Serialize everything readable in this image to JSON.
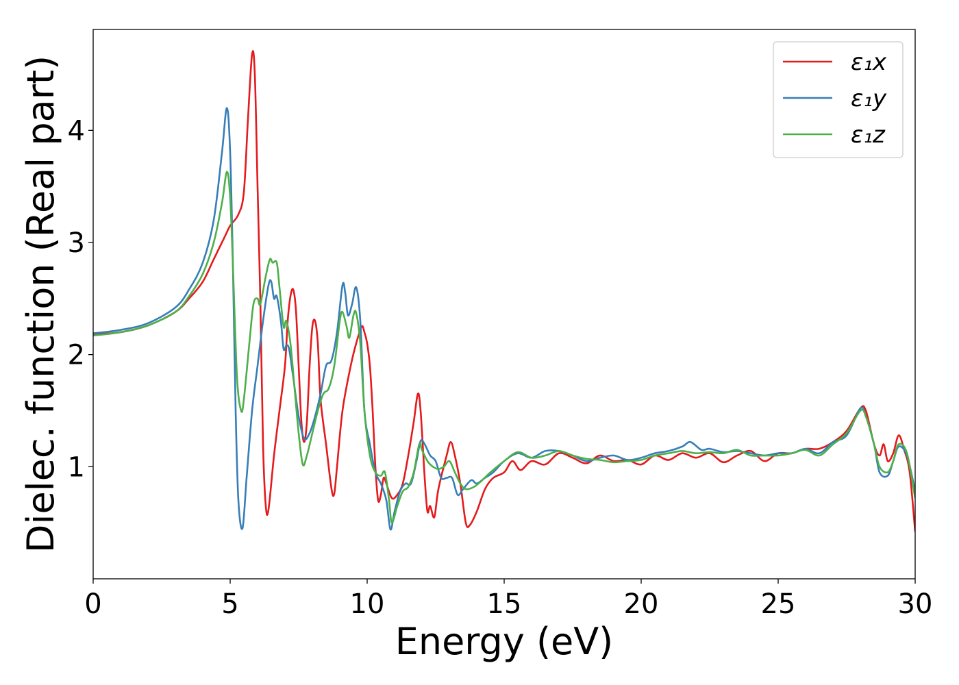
{
  "chart_data": {
    "type": "line",
    "xlabel": "Energy (eV)",
    "ylabel": "Dielec. function (Real part)",
    "xlim": [
      0,
      30
    ],
    "ylim": [
      0.0,
      4.9
    ],
    "xticks": [
      0,
      5,
      10,
      15,
      20,
      25,
      30
    ],
    "yticks": [
      1,
      2,
      3,
      4
    ],
    "grid": false,
    "legend_position": "top-right",
    "series": [
      {
        "name": "ε₁x",
        "color": "#e41a1c",
        "points": [
          [
            0,
            2.18
          ],
          [
            1,
            2.2
          ],
          [
            2,
            2.26
          ],
          [
            3,
            2.38
          ],
          [
            3.5,
            2.5
          ],
          [
            4,
            2.65
          ],
          [
            4.4,
            2.85
          ],
          [
            4.8,
            3.05
          ],
          [
            5,
            3.15
          ],
          [
            5.3,
            3.25
          ],
          [
            5.5,
            3.45
          ],
          [
            5.65,
            4.1
          ],
          [
            5.8,
            4.68
          ],
          [
            5.9,
            4.5
          ],
          [
            6.0,
            3.5
          ],
          [
            6.1,
            2.5
          ],
          [
            6.2,
            1.2
          ],
          [
            6.3,
            0.65
          ],
          [
            6.4,
            0.62
          ],
          [
            6.6,
            1.1
          ],
          [
            6.8,
            1.5
          ],
          [
            7.0,
            1.9
          ],
          [
            7.1,
            2.3
          ],
          [
            7.2,
            2.52
          ],
          [
            7.3,
            2.58
          ],
          [
            7.4,
            2.4
          ],
          [
            7.5,
            1.9
          ],
          [
            7.6,
            1.4
          ],
          [
            7.7,
            1.22
          ],
          [
            7.8,
            1.4
          ],
          [
            7.9,
            1.9
          ],
          [
            8.0,
            2.25
          ],
          [
            8.1,
            2.3
          ],
          [
            8.2,
            2.1
          ],
          [
            8.3,
            1.6
          ],
          [
            8.5,
            1.2
          ],
          [
            8.7,
            0.8
          ],
          [
            8.8,
            0.76
          ],
          [
            8.9,
            1.0
          ],
          [
            9.1,
            1.5
          ],
          [
            9.4,
            1.9
          ],
          [
            9.6,
            2.1
          ],
          [
            9.8,
            2.25
          ],
          [
            9.9,
            2.2
          ],
          [
            10.0,
            2.1
          ],
          [
            10.1,
            1.9
          ],
          [
            10.2,
            1.5
          ],
          [
            10.3,
            1.0
          ],
          [
            10.4,
            0.7
          ],
          [
            10.5,
            0.75
          ],
          [
            10.6,
            0.9
          ],
          [
            10.7,
            0.85
          ],
          [
            10.9,
            0.72
          ],
          [
            11.1,
            0.75
          ],
          [
            11.3,
            0.85
          ],
          [
            11.5,
            1.1
          ],
          [
            11.7,
            1.4
          ],
          [
            11.85,
            1.65
          ],
          [
            11.95,
            1.5
          ],
          [
            12.1,
            0.9
          ],
          [
            12.2,
            0.6
          ],
          [
            12.3,
            0.65
          ],
          [
            12.45,
            0.55
          ],
          [
            12.6,
            0.8
          ],
          [
            12.9,
            1.1
          ],
          [
            13.05,
            1.22
          ],
          [
            13.2,
            1.1
          ],
          [
            13.4,
            0.85
          ],
          [
            13.6,
            0.5
          ],
          [
            13.75,
            0.48
          ],
          [
            14.0,
            0.6
          ],
          [
            14.3,
            0.8
          ],
          [
            14.6,
            0.9
          ],
          [
            15,
            0.95
          ],
          [
            15.3,
            1.05
          ],
          [
            15.6,
            0.97
          ],
          [
            16,
            1.05
          ],
          [
            16.5,
            1.02
          ],
          [
            17,
            1.12
          ],
          [
            17.5,
            1.08
          ],
          [
            18,
            1.03
          ],
          [
            18.5,
            1.1
          ],
          [
            19,
            1.05
          ],
          [
            19.5,
            1.06
          ],
          [
            20,
            1.02
          ],
          [
            20.5,
            1.1
          ],
          [
            21,
            1.06
          ],
          [
            21.5,
            1.12
          ],
          [
            22,
            1.08
          ],
          [
            22.5,
            1.12
          ],
          [
            23,
            1.04
          ],
          [
            23.5,
            1.1
          ],
          [
            24,
            1.14
          ],
          [
            24.5,
            1.05
          ],
          [
            25,
            1.12
          ],
          [
            25.5,
            1.12
          ],
          [
            26,
            1.16
          ],
          [
            26.5,
            1.16
          ],
          [
            27,
            1.22
          ],
          [
            27.5,
            1.32
          ],
          [
            28.0,
            1.52
          ],
          [
            28.2,
            1.5
          ],
          [
            28.5,
            1.2
          ],
          [
            28.7,
            1.1
          ],
          [
            28.85,
            1.2
          ],
          [
            29.0,
            1.05
          ],
          [
            29.2,
            1.12
          ],
          [
            29.4,
            1.28
          ],
          [
            29.6,
            1.15
          ],
          [
            29.8,
            0.95
          ],
          [
            30,
            0.42
          ]
        ]
      },
      {
        "name": "ε₁y",
        "color": "#377eb8",
        "points": [
          [
            0,
            2.19
          ],
          [
            1,
            2.22
          ],
          [
            2,
            2.28
          ],
          [
            3,
            2.42
          ],
          [
            3.5,
            2.58
          ],
          [
            4,
            2.82
          ],
          [
            4.4,
            3.2
          ],
          [
            4.7,
            3.8
          ],
          [
            4.88,
            4.2
          ],
          [
            5.0,
            3.8
          ],
          [
            5.1,
            2.8
          ],
          [
            5.2,
            1.5
          ],
          [
            5.3,
            0.7
          ],
          [
            5.45,
            0.45
          ],
          [
            5.6,
            0.9
          ],
          [
            5.8,
            1.5
          ],
          [
            6.0,
            1.9
          ],
          [
            6.2,
            2.3
          ],
          [
            6.4,
            2.62
          ],
          [
            6.5,
            2.65
          ],
          [
            6.6,
            2.5
          ],
          [
            6.7,
            2.52
          ],
          [
            6.85,
            2.3
          ],
          [
            6.95,
            2.05
          ],
          [
            7.05,
            2.08
          ],
          [
            7.15,
            2.05
          ],
          [
            7.3,
            1.8
          ],
          [
            7.5,
            1.45
          ],
          [
            7.7,
            1.25
          ],
          [
            7.9,
            1.3
          ],
          [
            8.1,
            1.45
          ],
          [
            8.3,
            1.65
          ],
          [
            8.5,
            1.9
          ],
          [
            8.7,
            1.95
          ],
          [
            8.9,
            2.2
          ],
          [
            9.1,
            2.62
          ],
          [
            9.2,
            2.55
          ],
          [
            9.3,
            2.35
          ],
          [
            9.45,
            2.45
          ],
          [
            9.6,
            2.6
          ],
          [
            9.75,
            2.3
          ],
          [
            9.9,
            1.5
          ],
          [
            10.1,
            1.2
          ],
          [
            10.3,
            0.95
          ],
          [
            10.5,
            0.85
          ],
          [
            10.7,
            0.7
          ],
          [
            10.85,
            0.44
          ],
          [
            11.0,
            0.6
          ],
          [
            11.2,
            0.78
          ],
          [
            11.4,
            0.85
          ],
          [
            11.6,
            0.85
          ],
          [
            11.8,
            1.05
          ],
          [
            11.95,
            1.23
          ],
          [
            12.1,
            1.2
          ],
          [
            12.3,
            1.1
          ],
          [
            12.5,
            1.05
          ],
          [
            12.7,
            0.9
          ],
          [
            12.9,
            0.9
          ],
          [
            13.1,
            0.9
          ],
          [
            13.3,
            0.75
          ],
          [
            13.5,
            0.8
          ],
          [
            13.8,
            0.88
          ],
          [
            14.0,
            0.85
          ],
          [
            14.3,
            0.9
          ],
          [
            14.6,
            0.95
          ],
          [
            15,
            1.05
          ],
          [
            15.5,
            1.12
          ],
          [
            16,
            1.08
          ],
          [
            16.5,
            1.14
          ],
          [
            17,
            1.14
          ],
          [
            17.5,
            1.1
          ],
          [
            18,
            1.05
          ],
          [
            18.5,
            1.08
          ],
          [
            19,
            1.1
          ],
          [
            19.5,
            1.06
          ],
          [
            20,
            1.08
          ],
          [
            20.5,
            1.12
          ],
          [
            21,
            1.14
          ],
          [
            21.5,
            1.18
          ],
          [
            21.8,
            1.22
          ],
          [
            22.2,
            1.15
          ],
          [
            22.5,
            1.16
          ],
          [
            23,
            1.13
          ],
          [
            23.5,
            1.14
          ],
          [
            24,
            1.12
          ],
          [
            24.5,
            1.1
          ],
          [
            25,
            1.12
          ],
          [
            25.5,
            1.12
          ],
          [
            26,
            1.16
          ],
          [
            26.5,
            1.12
          ],
          [
            27,
            1.22
          ],
          [
            27.5,
            1.28
          ],
          [
            28.0,
            1.52
          ],
          [
            28.2,
            1.45
          ],
          [
            28.5,
            1.2
          ],
          [
            28.7,
            0.95
          ],
          [
            29.0,
            0.92
          ],
          [
            29.2,
            1.05
          ],
          [
            29.4,
            1.18
          ],
          [
            29.7,
            1.1
          ],
          [
            30,
            0.78
          ]
        ]
      },
      {
        "name": "ε₁z",
        "color": "#4daf4a",
        "points": [
          [
            0,
            2.17
          ],
          [
            1,
            2.2
          ],
          [
            2,
            2.26
          ],
          [
            3,
            2.38
          ],
          [
            3.5,
            2.52
          ],
          [
            4,
            2.72
          ],
          [
            4.4,
            3.0
          ],
          [
            4.7,
            3.35
          ],
          [
            4.88,
            3.63
          ],
          [
            5.0,
            3.4
          ],
          [
            5.1,
            2.8
          ],
          [
            5.25,
            1.8
          ],
          [
            5.4,
            1.5
          ],
          [
            5.5,
            1.6
          ],
          [
            5.7,
            2.1
          ],
          [
            5.85,
            2.45
          ],
          [
            6.0,
            2.5
          ],
          [
            6.1,
            2.45
          ],
          [
            6.3,
            2.7
          ],
          [
            6.45,
            2.85
          ],
          [
            6.55,
            2.82
          ],
          [
            6.7,
            2.82
          ],
          [
            6.8,
            2.6
          ],
          [
            6.95,
            2.25
          ],
          [
            7.05,
            2.3
          ],
          [
            7.2,
            2.1
          ],
          [
            7.35,
            1.7
          ],
          [
            7.5,
            1.3
          ],
          [
            7.65,
            1.02
          ],
          [
            7.8,
            1.1
          ],
          [
            8.0,
            1.3
          ],
          [
            8.2,
            1.5
          ],
          [
            8.4,
            1.65
          ],
          [
            8.6,
            1.7
          ],
          [
            8.8,
            1.9
          ],
          [
            9.0,
            2.3
          ],
          [
            9.1,
            2.38
          ],
          [
            9.25,
            2.25
          ],
          [
            9.35,
            2.15
          ],
          [
            9.5,
            2.35
          ],
          [
            9.6,
            2.37
          ],
          [
            9.75,
            2.1
          ],
          [
            9.9,
            1.5
          ],
          [
            10.1,
            1.1
          ],
          [
            10.3,
            0.95
          ],
          [
            10.5,
            0.92
          ],
          [
            10.65,
            0.95
          ],
          [
            10.8,
            0.7
          ],
          [
            10.9,
            0.5
          ],
          [
            11.1,
            0.65
          ],
          [
            11.3,
            0.78
          ],
          [
            11.5,
            0.82
          ],
          [
            11.7,
            0.95
          ],
          [
            11.9,
            1.2
          ],
          [
            12.0,
            1.15
          ],
          [
            12.2,
            1.05
          ],
          [
            12.4,
            1.0
          ],
          [
            12.6,
            0.98
          ],
          [
            12.8,
            1.0
          ],
          [
            13.0,
            1.05
          ],
          [
            13.2,
            0.95
          ],
          [
            13.4,
            0.85
          ],
          [
            13.6,
            0.8
          ],
          [
            13.9,
            0.82
          ],
          [
            14.2,
            0.88
          ],
          [
            14.5,
            0.95
          ],
          [
            15,
            1.05
          ],
          [
            15.5,
            1.13
          ],
          [
            16,
            1.08
          ],
          [
            16.5,
            1.1
          ],
          [
            17,
            1.14
          ],
          [
            17.5,
            1.1
          ],
          [
            18,
            1.07
          ],
          [
            18.5,
            1.06
          ],
          [
            19,
            1.04
          ],
          [
            19.5,
            1.05
          ],
          [
            20,
            1.06
          ],
          [
            20.5,
            1.1
          ],
          [
            21,
            1.12
          ],
          [
            21.5,
            1.14
          ],
          [
            22,
            1.12
          ],
          [
            22.5,
            1.13
          ],
          [
            23,
            1.12
          ],
          [
            23.5,
            1.15
          ],
          [
            24,
            1.1
          ],
          [
            24.5,
            1.1
          ],
          [
            25,
            1.1
          ],
          [
            25.5,
            1.12
          ],
          [
            26,
            1.15
          ],
          [
            26.5,
            1.1
          ],
          [
            27,
            1.2
          ],
          [
            27.5,
            1.3
          ],
          [
            28.0,
            1.5
          ],
          [
            28.2,
            1.45
          ],
          [
            28.5,
            1.2
          ],
          [
            28.7,
            1.0
          ],
          [
            29.0,
            0.95
          ],
          [
            29.2,
            1.05
          ],
          [
            29.4,
            1.2
          ],
          [
            29.7,
            1.12
          ],
          [
            30,
            0.72
          ]
        ]
      }
    ]
  }
}
